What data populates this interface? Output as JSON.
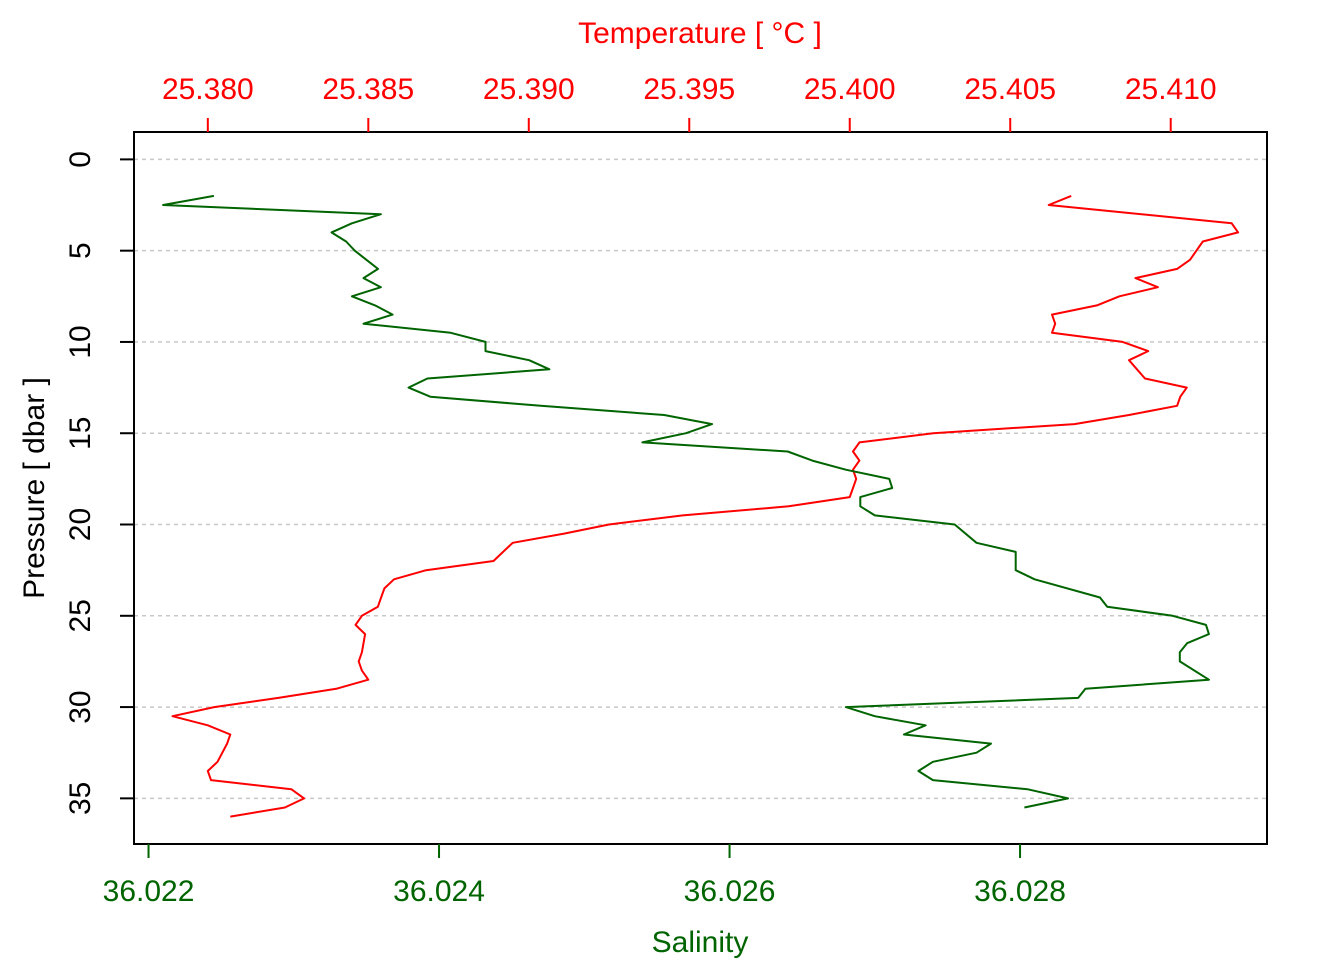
{
  "chart_data": {
    "type": "line",
    "xlabel_top": "Temperature [ °C ]",
    "xlabel_bottom": "Salinity",
    "ylabel": "Pressure [ dbar ]",
    "colors": {
      "temperature": "#ff0000",
      "salinity": "#006400",
      "grid": "#c8c8c8"
    },
    "grid": true,
    "y_reversed": true,
    "ylim": [
      -1.5,
      37.5
    ],
    "temp_xlim": [
      25.3777,
      25.413
    ],
    "sal_xlim": [
      36.0219,
      36.0297
    ],
    "yticks": [
      0,
      5,
      10,
      15,
      20,
      25,
      30,
      35
    ],
    "ytick_labels": [
      "0",
      "5",
      "10",
      "15",
      "20",
      "25",
      "30",
      "35"
    ],
    "temp_ticks": [
      25.38,
      25.385,
      25.39,
      25.395,
      25.4,
      25.405,
      25.41
    ],
    "temp_tick_labels": [
      "25.380",
      "25.385",
      "25.390",
      "25.395",
      "25.400",
      "25.405",
      "25.410"
    ],
    "sal_ticks": [
      36.022,
      36.024,
      36.026,
      36.028
    ],
    "sal_tick_labels": [
      "36.022",
      "36.024",
      "36.026",
      "36.028"
    ],
    "series": [
      {
        "name": "Temperature",
        "axis": "top",
        "color": "#ff0000",
        "points": [
          [
            25.4069,
            2.0
          ],
          [
            25.4062,
            2.5
          ],
          [
            25.4119,
            3.5
          ],
          [
            25.4121,
            4.0
          ],
          [
            25.411,
            4.5
          ],
          [
            25.4108,
            5.0
          ],
          [
            25.4106,
            5.5
          ],
          [
            25.4102,
            6.0
          ],
          [
            25.4089,
            6.5
          ],
          [
            25.4096,
            7.0
          ],
          [
            25.4084,
            7.5
          ],
          [
            25.4077,
            8.0
          ],
          [
            25.4063,
            8.5
          ],
          [
            25.4064,
            9.0
          ],
          [
            25.4063,
            9.5
          ],
          [
            25.4085,
            10.0
          ],
          [
            25.4093,
            10.5
          ],
          [
            25.4087,
            11.0
          ],
          [
            25.4092,
            12.0
          ],
          [
            25.4105,
            12.5
          ],
          [
            25.4103,
            13.0
          ],
          [
            25.4102,
            13.5
          ],
          [
            25.4087,
            14.0
          ],
          [
            25.407,
            14.5
          ],
          [
            25.4026,
            15.0
          ],
          [
            25.4003,
            15.5
          ],
          [
            25.4001,
            16.0
          ],
          [
            25.4003,
            16.5
          ],
          [
            25.4001,
            17.0
          ],
          [
            25.4002,
            17.5
          ],
          [
            25.4001,
            18.0
          ],
          [
            25.4,
            18.5
          ],
          [
            25.3981,
            19.0
          ],
          [
            25.3948,
            19.5
          ],
          [
            25.3925,
            20.0
          ],
          [
            25.3911,
            20.5
          ],
          [
            25.3895,
            21.0
          ],
          [
            25.3889,
            22.0
          ],
          [
            25.3868,
            22.5
          ],
          [
            25.3858,
            23.0
          ],
          [
            25.3855,
            23.5
          ],
          [
            25.3854,
            24.0
          ],
          [
            25.3853,
            24.5
          ],
          [
            25.3848,
            25.0
          ],
          [
            25.3846,
            25.5
          ],
          [
            25.3849,
            26.0
          ],
          [
            25.3848,
            27.0
          ],
          [
            25.3847,
            27.5
          ],
          [
            25.3848,
            28.0
          ],
          [
            25.385,
            28.5
          ],
          [
            25.384,
            29.0
          ],
          [
            25.3822,
            29.5
          ],
          [
            25.3802,
            30.0
          ],
          [
            25.3789,
            30.5
          ],
          [
            25.38,
            31.0
          ],
          [
            25.3807,
            31.5
          ],
          [
            25.3806,
            32.0
          ],
          [
            25.3803,
            33.0
          ],
          [
            25.38,
            33.5
          ],
          [
            25.3801,
            34.0
          ],
          [
            25.3826,
            34.5
          ],
          [
            25.383,
            35.0
          ],
          [
            25.3824,
            35.5
          ],
          [
            25.3807,
            36.0
          ]
        ]
      },
      {
        "name": "Salinity",
        "axis": "bottom",
        "color": "#006400",
        "points": [
          [
            36.02245,
            2.0
          ],
          [
            36.0221,
            2.5
          ],
          [
            36.0236,
            3.0
          ],
          [
            36.0234,
            3.5
          ],
          [
            36.02326,
            4.0
          ],
          [
            36.02336,
            4.5
          ],
          [
            36.02342,
            5.0
          ],
          [
            36.0235,
            5.5
          ],
          [
            36.02358,
            6.0
          ],
          [
            36.02348,
            6.5
          ],
          [
            36.0236,
            7.0
          ],
          [
            36.0234,
            7.5
          ],
          [
            36.02356,
            8.0
          ],
          [
            36.02368,
            8.5
          ],
          [
            36.02348,
            9.0
          ],
          [
            36.02408,
            9.5
          ],
          [
            36.02432,
            10.0
          ],
          [
            36.02432,
            10.5
          ],
          [
            36.02462,
            11.0
          ],
          [
            36.02476,
            11.5
          ],
          [
            36.02392,
            12.0
          ],
          [
            36.02379,
            12.5
          ],
          [
            36.02394,
            13.0
          ],
          [
            36.0247,
            13.5
          ],
          [
            36.02555,
            14.0
          ],
          [
            36.02588,
            14.5
          ],
          [
            36.0257,
            15.0
          ],
          [
            36.0254,
            15.5
          ],
          [
            36.0264,
            16.0
          ],
          [
            36.02657,
            16.5
          ],
          [
            36.0268,
            17.0
          ],
          [
            36.0271,
            17.5
          ],
          [
            36.02712,
            18.0
          ],
          [
            36.0269,
            18.5
          ],
          [
            36.0269,
            19.0
          ],
          [
            36.027,
            19.5
          ],
          [
            36.02755,
            20.0
          ],
          [
            36.0277,
            21.0
          ],
          [
            36.02797,
            21.5
          ],
          [
            36.02797,
            22.5
          ],
          [
            36.0281,
            23.0
          ],
          [
            36.02855,
            24.0
          ],
          [
            36.0286,
            24.5
          ],
          [
            36.02905,
            25.0
          ],
          [
            36.02928,
            25.5
          ],
          [
            36.0293,
            26.0
          ],
          [
            36.02915,
            26.5
          ],
          [
            36.0291,
            27.0
          ],
          [
            36.0291,
            27.5
          ],
          [
            36.0293,
            28.5
          ],
          [
            36.02845,
            29.0
          ],
          [
            36.0284,
            29.5
          ],
          [
            36.0268,
            30.0
          ],
          [
            36.027,
            30.5
          ],
          [
            36.02735,
            31.0
          ],
          [
            36.0272,
            31.5
          ],
          [
            36.0278,
            32.0
          ],
          [
            36.0277,
            32.5
          ],
          [
            36.0274,
            33.0
          ],
          [
            36.0273,
            33.5
          ],
          [
            36.0274,
            34.0
          ],
          [
            36.02805,
            34.5
          ],
          [
            36.02833,
            35.0
          ],
          [
            36.02803,
            35.5
          ]
        ]
      }
    ]
  }
}
